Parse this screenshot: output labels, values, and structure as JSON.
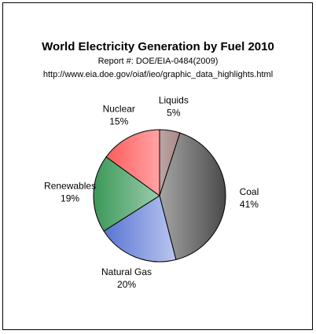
{
  "chart_data": {
    "type": "pie",
    "title": "World Electricity Generation by Fuel 2010",
    "subtitle": "Report #: DOE/EIA-0484(2009)",
    "source": "http://www.eia.doe.gov/oiaf/ieo/graphic_data_highlights.html",
    "categories": [
      "Liquids",
      "Coal",
      "Natural Gas",
      "Renewables",
      "Nuclear"
    ],
    "values": [
      5,
      41,
      20,
      19,
      15
    ],
    "value_labels": [
      "5%",
      "41%",
      "20%",
      "19%",
      "15%"
    ],
    "colors": [
      "#7a4a4a",
      "#4a4a4a",
      "#4a68d0",
      "#3a9858",
      "#ff4a4a"
    ]
  }
}
